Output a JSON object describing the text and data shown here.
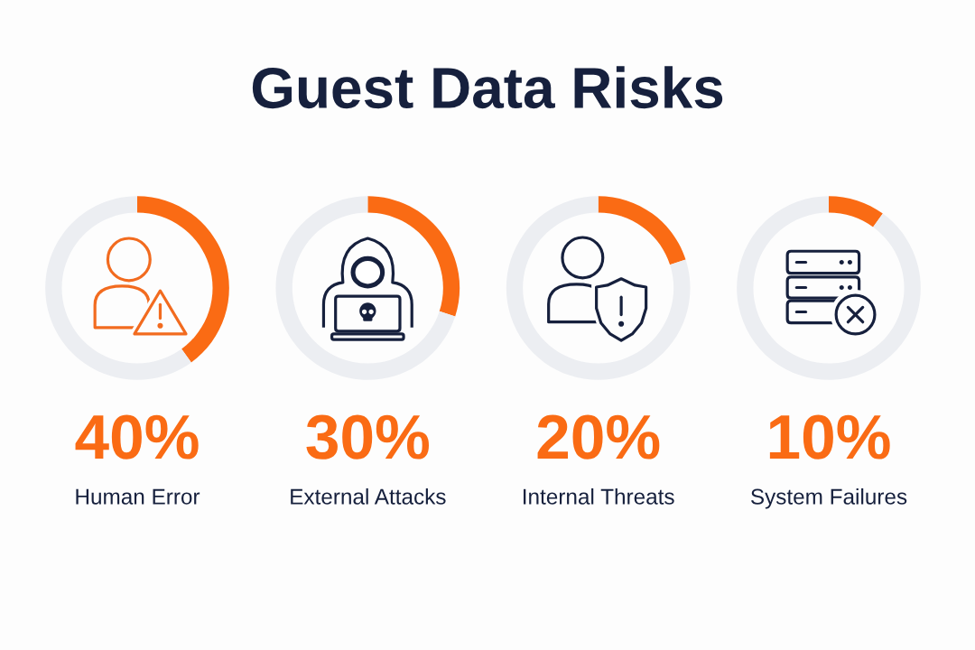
{
  "chart_data": [
    {
      "type": "donut",
      "title": "Guest Data Risks",
      "xlabel": "Human Error",
      "annotations": [
        "40%"
      ],
      "categories": [
        null,
        null
      ],
      "values": [
        40,
        60
      ],
      "colors": [
        "#fa6b14",
        "#eceef2"
      ]
    },
    {
      "type": "donut",
      "xlabel": "External Attacks",
      "annotations": [
        "30%"
      ],
      "categories": [
        null,
        null
      ],
      "values": [
        30,
        70
      ],
      "colors": [
        "#fa6b14",
        "#eceef2"
      ]
    },
    {
      "type": "donut",
      "xlabel": "Internal Threats",
      "annotations": [
        "20%"
      ],
      "categories": [
        null,
        null
      ],
      "values": [
        20,
        80
      ],
      "colors": [
        "#fa6b14",
        "#eceef2"
      ]
    },
    {
      "type": "donut",
      "xlabel": "System Failures",
      "annotations": [
        "10%"
      ],
      "categories": [
        null,
        null
      ],
      "values": [
        10,
        90
      ],
      "colors": [
        "#fa6b14",
        "#eceef2"
      ]
    }
  ]
}
